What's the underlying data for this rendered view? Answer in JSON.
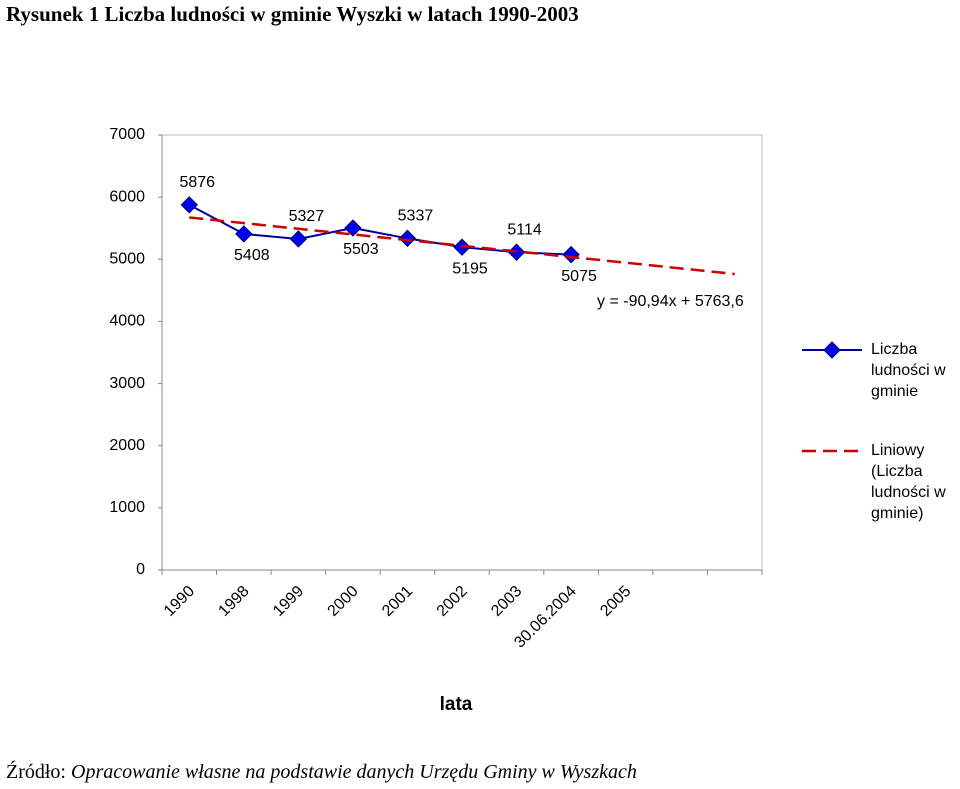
{
  "chart_data": {
    "type": "line",
    "title": "Rysunek 1 Liczba ludności w gminie Wyszki w latach 1990-2003",
    "x_label": "lata",
    "categories": [
      "1990",
      "1998",
      "1999",
      "2000",
      "2001",
      "2002",
      "2003",
      "30.06.2004",
      "2005",
      null,
      null
    ],
    "series": [
      {
        "name": "Liczba ludności w gminie",
        "color": "#0000ee",
        "line_color": "#000099",
        "marker": "diamond",
        "data_labels": true,
        "values": [
          5876,
          5408,
          5327,
          5503,
          5337,
          5195,
          5114,
          5075,
          null,
          null,
          null
        ]
      },
      {
        "name": "Liniowy (Liczba ludności w gminie)",
        "color": "#cc0000",
        "dashed": true,
        "values": [
          5672.66,
          5581.72,
          5490.78,
          5399.84,
          5308.9,
          5217.96,
          5127.02,
          5036.08,
          4945.14,
          4854.2,
          4763.26
        ]
      }
    ],
    "annotation": "y = -90,94x + 5763,6",
    "ylim": [
      0,
      7000
    ],
    "yticks": [
      0,
      1000,
      2000,
      3000,
      4000,
      5000,
      6000,
      7000
    ],
    "grid": false,
    "legend": "right",
    "source": {
      "label": "Źródło:",
      "text": "Opracowanie własne na podstawie danych Urzędu Gminy w Wyszkach"
    }
  }
}
